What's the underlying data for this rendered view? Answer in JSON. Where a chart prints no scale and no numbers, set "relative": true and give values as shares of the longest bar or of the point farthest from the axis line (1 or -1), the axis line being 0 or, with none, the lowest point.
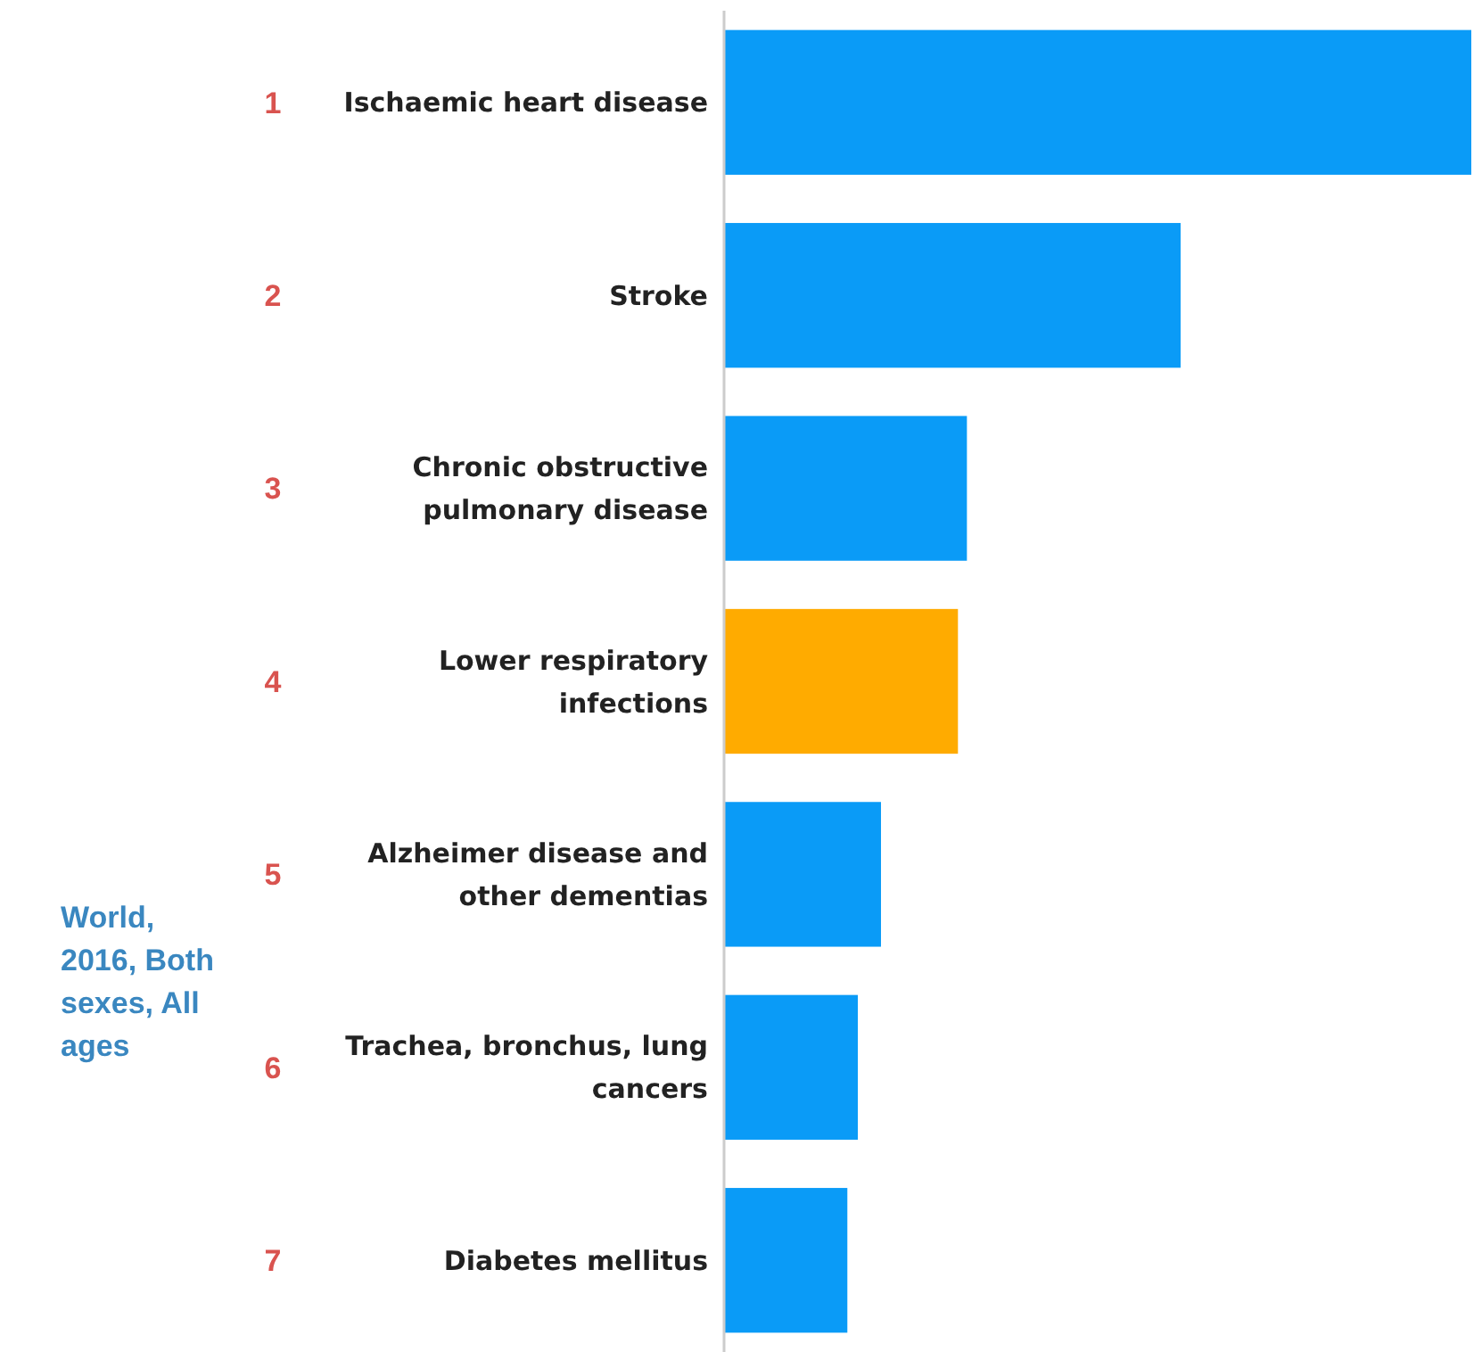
{
  "chart_data": {
    "type": "bar",
    "orientation": "horizontal",
    "relative": true,
    "categories": [
      "Ischaemic heart disease",
      "Stroke",
      "Chronic obstructive pulmonary disease",
      "Lower respiratory infections",
      "Alzheimer disease and other dementias",
      "Trachea, bronchus, lung cancers",
      "Diabetes mellitus"
    ],
    "values": [
      1,
      0.611,
      0.325,
      0.313,
      0.21,
      0.179,
      0.165
    ],
    "colors": [
      "#0a9bf7",
      "#0a9bf7",
      "#0a9bf7",
      "#ffab00",
      "#0a9bf7",
      "#0a9bf7",
      "#0a9bf7"
    ],
    "annotations": [
      "1",
      "2",
      "3",
      "4",
      "5",
      "6",
      "7",
      "World, 2016, Both sexes, All ages"
    ]
  }
}
